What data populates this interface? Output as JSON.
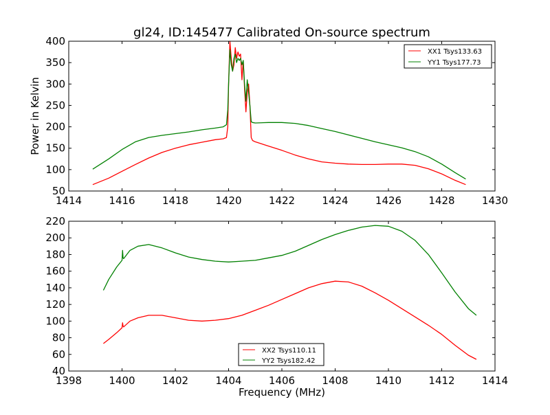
{
  "figure": {
    "title": "gl24, ID:145477 Calibrated On-source spectrum",
    "xlabel": "Frequency (MHz)"
  },
  "colors": {
    "red": "#ff0000",
    "green": "#008000",
    "axis": "#000000",
    "background": "#ffffff"
  },
  "chart_data": [
    {
      "type": "line",
      "title": "gl24, ID:145477 Calibrated On-source spectrum",
      "xlabel": "",
      "ylabel": "Power in Kelvin",
      "xlim": [
        1414,
        1430
      ],
      "ylim": [
        50,
        400
      ],
      "xticks": [
        1414,
        1416,
        1418,
        1420,
        1422,
        1424,
        1426,
        1428,
        1430
      ],
      "yticks": [
        50,
        100,
        150,
        200,
        250,
        300,
        350,
        400
      ],
      "legend_position": "top-right",
      "grid": false,
      "series": [
        {
          "name": "XX1 Tsys133.63",
          "color": "#ff0000",
          "x": [
            1414.9,
            1415.5,
            1416.0,
            1416.5,
            1417.0,
            1417.5,
            1418.0,
            1418.5,
            1419.0,
            1419.5,
            1419.8,
            1419.92,
            1419.97,
            1420.0,
            1420.05,
            1420.1,
            1420.15,
            1420.2,
            1420.25,
            1420.3,
            1420.35,
            1420.4,
            1420.45,
            1420.5,
            1420.55,
            1420.6,
            1420.65,
            1420.7,
            1420.75,
            1420.8,
            1420.85,
            1420.9,
            1421.0,
            1421.5,
            1422.0,
            1422.5,
            1423.0,
            1423.5,
            1424.0,
            1424.5,
            1425.0,
            1425.5,
            1426.0,
            1426.5,
            1427.0,
            1427.5,
            1428.0,
            1428.5,
            1428.9
          ],
          "y": [
            65,
            80,
            96,
            112,
            127,
            140,
            150,
            158,
            164,
            170,
            172,
            175,
            200,
            300,
            400,
            360,
            330,
            345,
            385,
            360,
            375,
            365,
            370,
            310,
            355,
            290,
            235,
            280,
            300,
            250,
            175,
            168,
            165,
            155,
            145,
            134,
            125,
            118,
            115,
            113,
            112,
            112,
            113,
            113,
            110,
            102,
            90,
            75,
            65
          ]
        },
        {
          "name": "YY1 Tsys177.73",
          "color": "#008000",
          "x": [
            1414.9,
            1415.5,
            1416.0,
            1416.5,
            1417.0,
            1417.5,
            1418.0,
            1418.5,
            1419.0,
            1419.5,
            1419.8,
            1419.92,
            1419.97,
            1420.0,
            1420.05,
            1420.1,
            1420.15,
            1420.2,
            1420.25,
            1420.3,
            1420.35,
            1420.4,
            1420.45,
            1420.5,
            1420.55,
            1420.6,
            1420.65,
            1420.7,
            1420.75,
            1420.8,
            1420.85,
            1420.9,
            1421.0,
            1421.5,
            1422.0,
            1422.5,
            1423.0,
            1423.5,
            1424.0,
            1424.5,
            1425.0,
            1425.5,
            1426.0,
            1426.5,
            1427.0,
            1427.5,
            1428.0,
            1428.5,
            1428.9
          ],
          "y": [
            101,
            125,
            147,
            165,
            175,
            180,
            184,
            188,
            193,
            197,
            200,
            205,
            240,
            300,
            380,
            345,
            330,
            360,
            370,
            350,
            360,
            355,
            360,
            345,
            355,
            300,
            260,
            310,
            280,
            250,
            212,
            210,
            209,
            210,
            210,
            208,
            203,
            196,
            189,
            181,
            173,
            165,
            158,
            151,
            142,
            130,
            113,
            93,
            78
          ]
        }
      ]
    },
    {
      "type": "line",
      "title": "",
      "xlabel": "Frequency (MHz)",
      "ylabel": "",
      "xlim": [
        1398,
        1414
      ],
      "ylim": [
        40,
        220
      ],
      "xticks": [
        1398,
        1400,
        1402,
        1404,
        1406,
        1408,
        1410,
        1412,
        1414
      ],
      "yticks": [
        40,
        60,
        80,
        100,
        120,
        140,
        160,
        180,
        200,
        220
      ],
      "legend_position": "bottom-center",
      "grid": false,
      "series": [
        {
          "name": "XX2 Tsys110.11",
          "color": "#ff0000",
          "x": [
            1399.3,
            1399.5,
            1399.8,
            1400.0,
            1400.02,
            1400.04,
            1400.06,
            1400.3,
            1400.6,
            1401.0,
            1401.5,
            1402.0,
            1402.5,
            1403.0,
            1403.5,
            1404.0,
            1404.5,
            1405.0,
            1405.5,
            1406.0,
            1406.5,
            1407.0,
            1407.5,
            1408.0,
            1408.5,
            1409.0,
            1409.5,
            1410.0,
            1410.5,
            1411.0,
            1411.5,
            1412.0,
            1412.5,
            1413.0,
            1413.3
          ],
          "y": [
            73,
            78,
            86,
            92,
            98,
            94,
            93,
            100,
            104,
            107,
            107,
            104,
            101,
            100,
            101,
            103,
            107,
            113,
            119,
            126,
            133,
            140,
            145,
            148,
            147,
            142,
            134,
            125,
            115,
            105,
            95,
            84,
            71,
            59,
            54
          ]
        },
        {
          "name": "YY2 Tsys182.42",
          "color": "#008000",
          "x": [
            1399.3,
            1399.5,
            1399.8,
            1400.0,
            1400.02,
            1400.04,
            1400.06,
            1400.3,
            1400.6,
            1401.0,
            1401.5,
            1402.0,
            1402.5,
            1403.0,
            1403.5,
            1404.0,
            1404.5,
            1405.0,
            1405.5,
            1406.0,
            1406.5,
            1407.0,
            1407.5,
            1408.0,
            1408.5,
            1409.0,
            1409.5,
            1410.0,
            1410.5,
            1411.0,
            1411.5,
            1412.0,
            1412.5,
            1413.0,
            1413.3
          ],
          "y": [
            137,
            150,
            165,
            173,
            185,
            176,
            175,
            185,
            190,
            192,
            188,
            182,
            177,
            174,
            172,
            171,
            172,
            173,
            176,
            179,
            184,
            191,
            198,
            204,
            209,
            213,
            215,
            214,
            208,
            197,
            180,
            158,
            135,
            115,
            107
          ]
        }
      ]
    }
  ]
}
